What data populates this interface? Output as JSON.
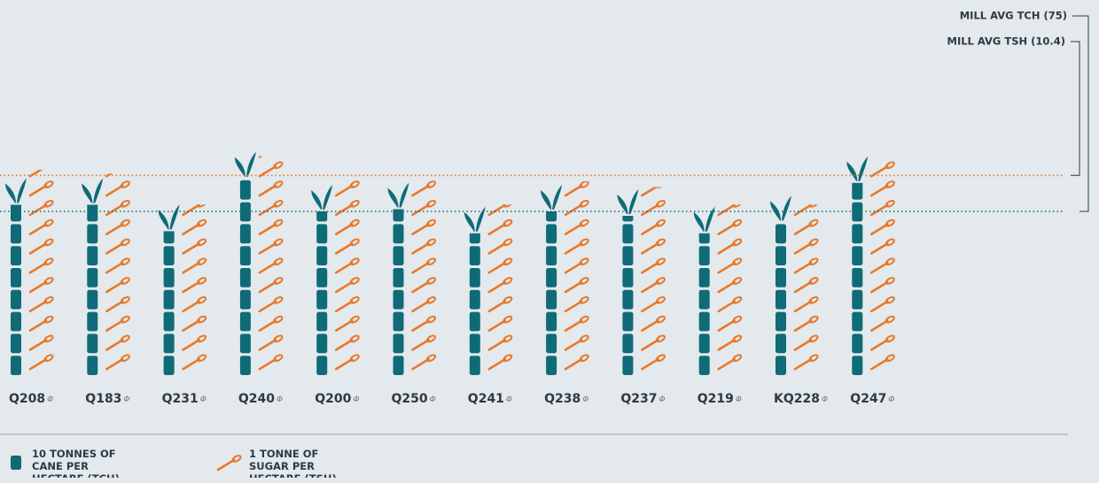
{
  "chart_data": {
    "type": "pictogram",
    "categories": [
      "Q208",
      "Q183",
      "Q231",
      "Q240",
      "Q200",
      "Q250",
      "Q241",
      "Q238",
      "Q237",
      "Q219",
      "KQ228",
      "Q247"
    ],
    "category_marker": "Φ",
    "series": [
      {
        "name": "10 TONNES OF CANE PER HECTARE (TCH)",
        "color": "#0f6b78",
        "values": [
          78,
          78,
          66,
          90,
          75,
          76,
          65,
          75,
          73,
          65,
          70,
          88
        ]
      },
      {
        "name": "1 TONNE OF SUGAR PER HECTARE (TSH)",
        "color": "#e8782a",
        "values": [
          10.6,
          10.4,
          8.8,
          11.3,
          10.2,
          10.2,
          8.8,
          10,
          9.7,
          8.8,
          8.8,
          11.2
        ]
      }
    ],
    "reference_lines": [
      {
        "label": "MILL AVG TCH (75)",
        "value": 75,
        "series": 0
      },
      {
        "label": "MILL AVG TSH (10.4)",
        "value": 10.4,
        "series": 1
      }
    ]
  }
}
